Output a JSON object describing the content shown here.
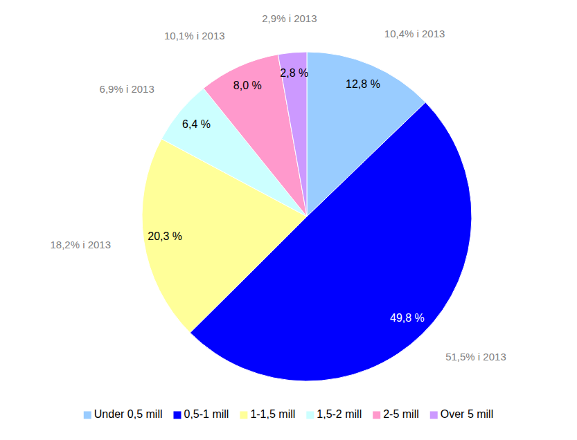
{
  "chart_data": {
    "type": "pie",
    "categories": [
      "Under 0,5 mill",
      "0,5-1 mill",
      "1-1,5 mill",
      "1,5-2 mill",
      "2-5 mill",
      "Over 5 mill"
    ],
    "values": [
      12.8,
      49.8,
      20.3,
      6.4,
      8.0,
      2.8
    ],
    "value_labels": [
      "12,8 %",
      "49,8 %",
      "20,3 %",
      "6,4 %",
      "8,0 %",
      "2,8 %"
    ],
    "colors": [
      "#99ccff",
      "#0000ff",
      "#ffff99",
      "#ccffff",
      "#ff99cc",
      "#cc99ff"
    ],
    "annotations": [
      "10,4% i 2013",
      "51,5% i 2013",
      "18,2% i 2013",
      "6,9% i 2013",
      "10,1% i 2013",
      "2,9% i 2013"
    ],
    "data_labels": true,
    "legend": "bottom"
  }
}
